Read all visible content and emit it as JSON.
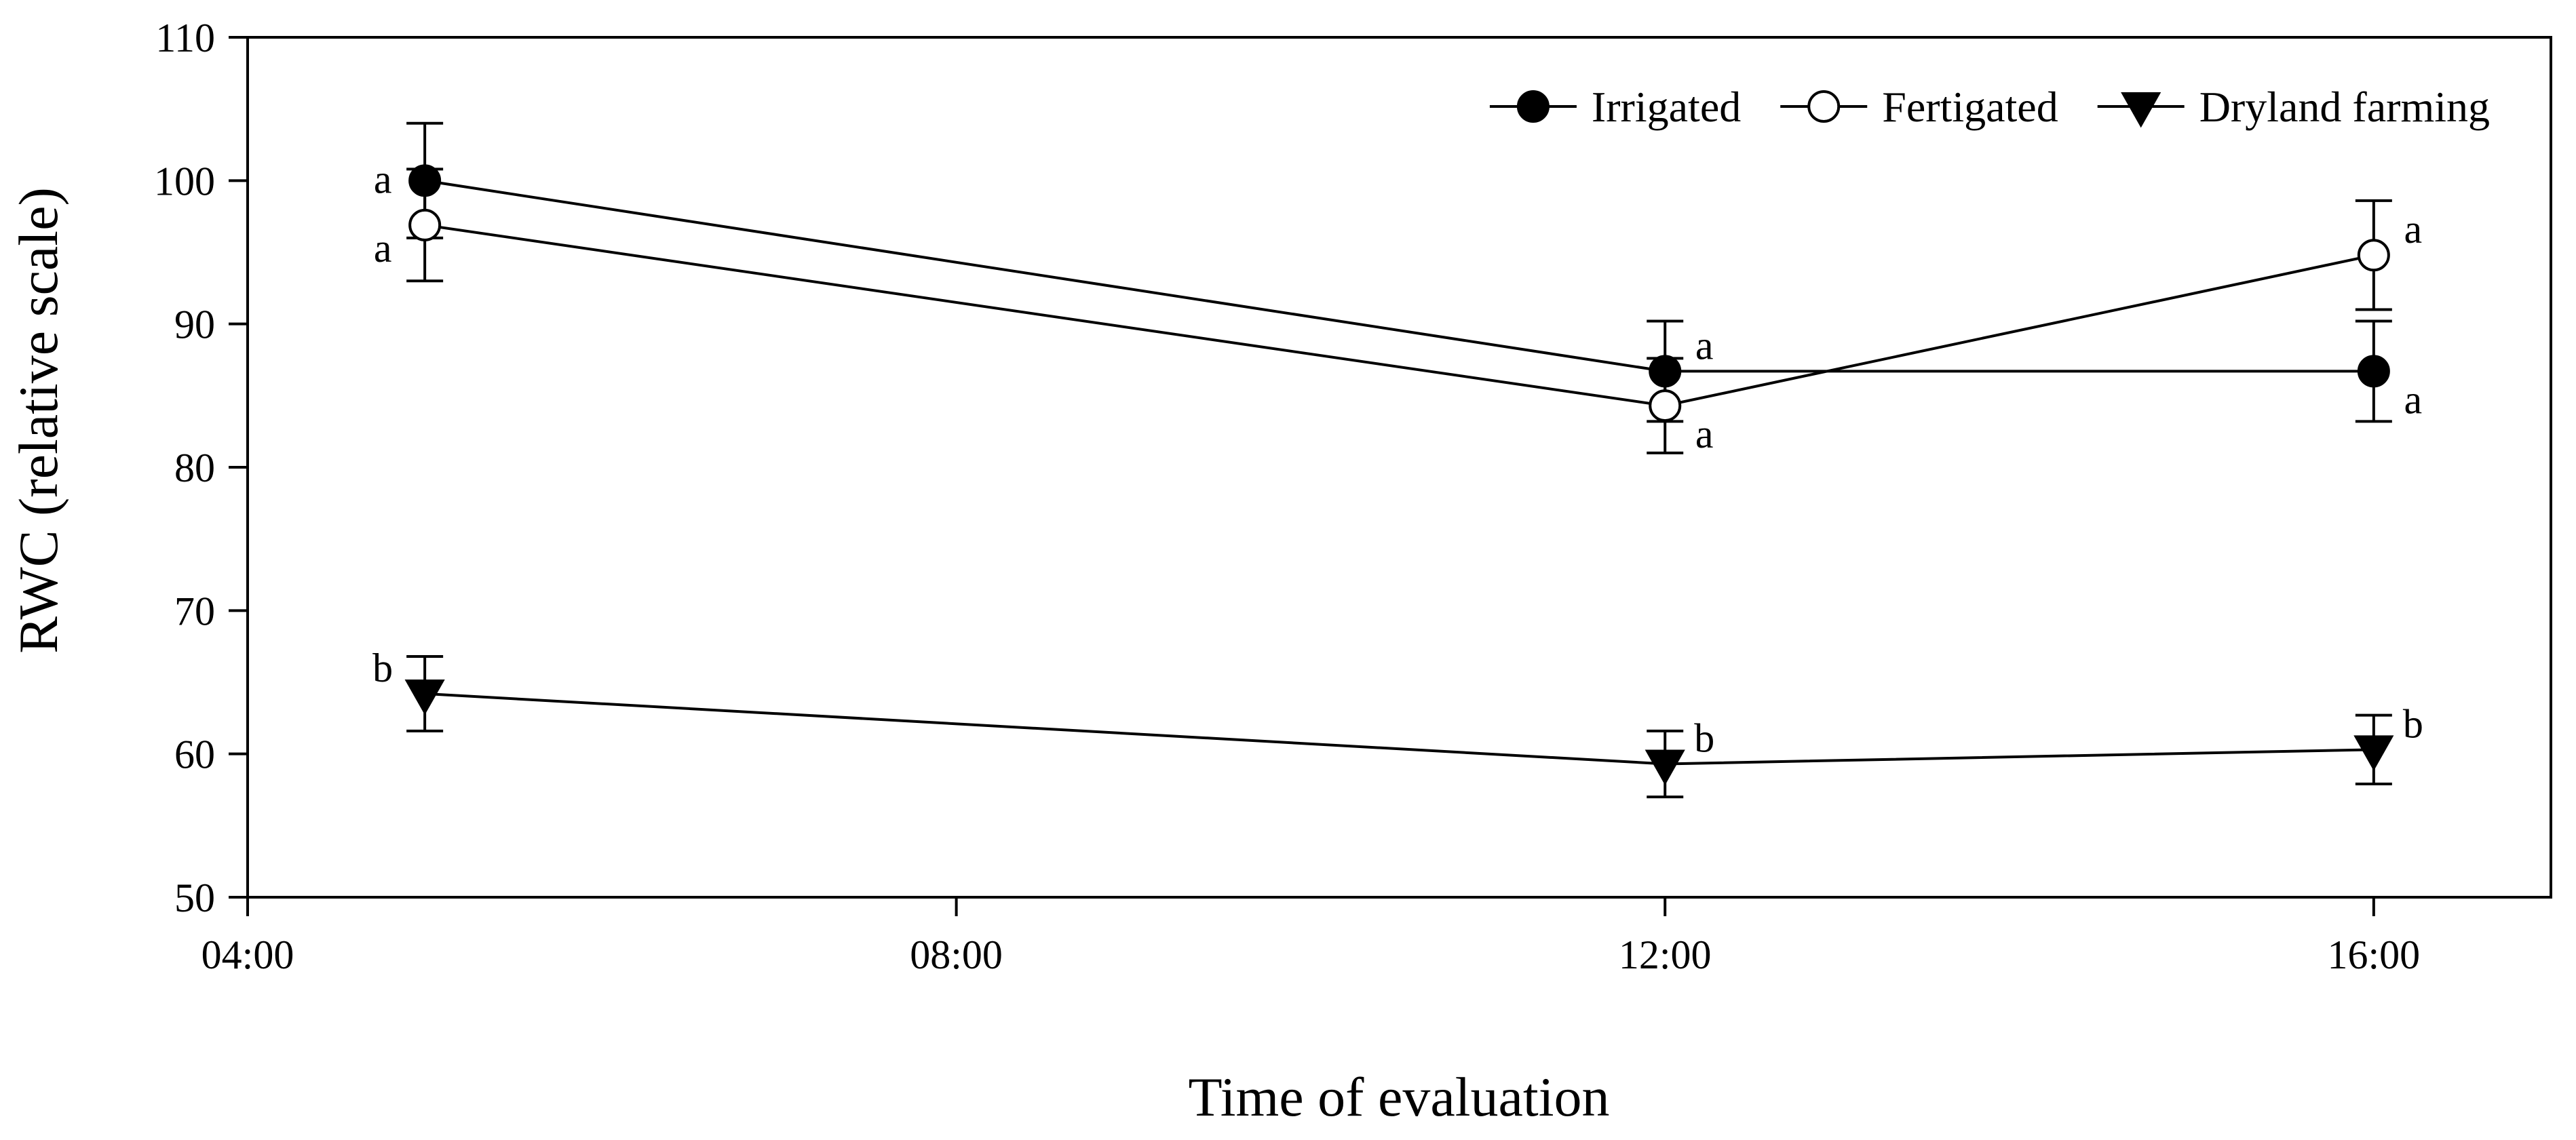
{
  "chart_data": {
    "type": "line",
    "title": "",
    "xlabel": "Time of evaluation",
    "ylabel": "RWC (relative scale)",
    "x_hours": [
      5,
      12,
      16
    ],
    "xlim": [
      4,
      17
    ],
    "ylim": [
      50,
      110
    ],
    "xticks": [
      {
        "hour": 4,
        "label": "04:00"
      },
      {
        "hour": 8,
        "label": "08:00"
      },
      {
        "hour": 12,
        "label": "12:00"
      },
      {
        "hour": 16,
        "label": "16:00"
      }
    ],
    "yticks": [
      50,
      60,
      70,
      80,
      90,
      100,
      110
    ],
    "legend_position": "top-right",
    "grid": false,
    "series": [
      {
        "name": "Irrigated",
        "marker": "filled-circle",
        "values": [
          100,
          86.7,
          86.7
        ],
        "errors": [
          4,
          3.5,
          3.5
        ],
        "letters": [
          "a",
          "a",
          "a"
        ],
        "letter_pos": [
          "left",
          "right-above",
          "right-below"
        ]
      },
      {
        "name": "Fertigated",
        "marker": "open-circle",
        "values": [
          96.9,
          84.3,
          94.8
        ],
        "errors": [
          3.9,
          3.3,
          3.8
        ],
        "letters": [
          "a",
          "a",
          "a"
        ],
        "letter_pos": [
          "left-below",
          "right-below",
          "right-above"
        ]
      },
      {
        "name": "Dryland farming",
        "marker": "filled-triangle-down",
        "values": [
          64.2,
          59.3,
          60.3
        ],
        "errors": [
          2.6,
          2.3,
          2.4
        ],
        "letters": [
          "b",
          "b",
          "b"
        ],
        "letter_pos": [
          "left-above",
          "right-above",
          "right-above"
        ]
      }
    ],
    "colors": {
      "line": "#000000",
      "background": "#ffffff"
    }
  }
}
